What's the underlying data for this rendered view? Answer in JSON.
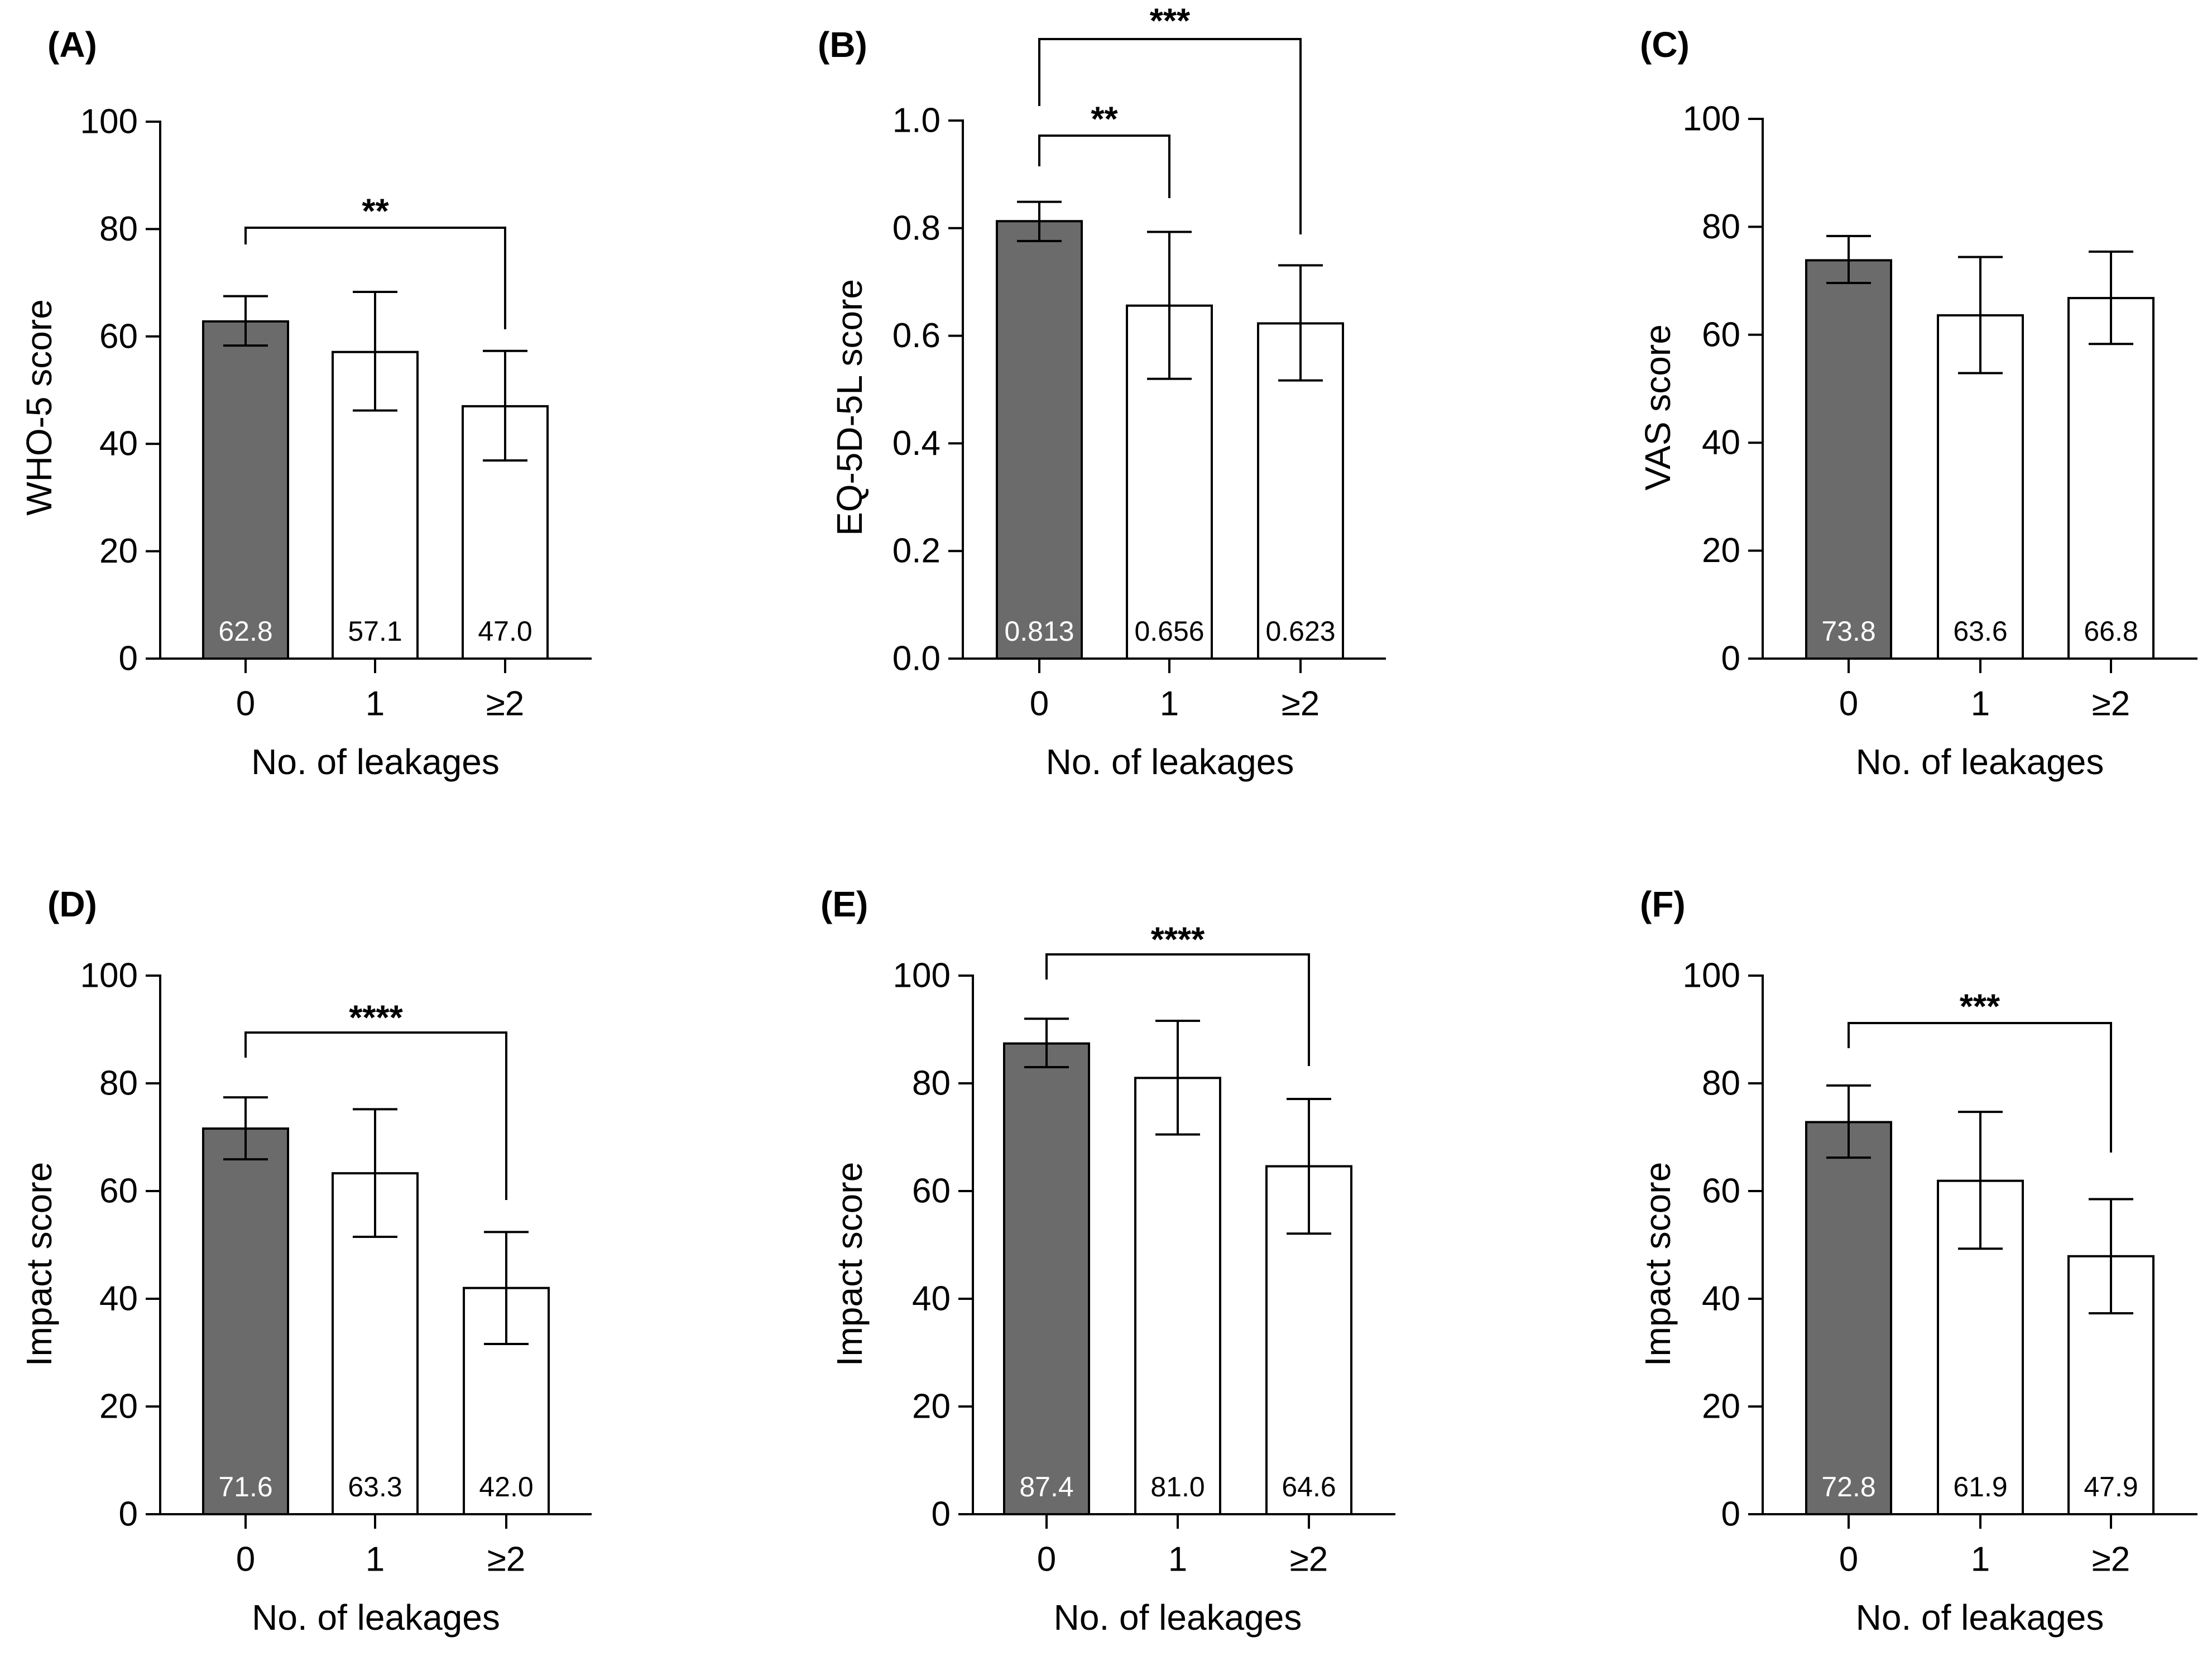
{
  "figure": {
    "x_axis_title": "No. of leakages"
  },
  "colors": {
    "dark_bar": "#6b6b6b",
    "light_bar": "#ffffff",
    "stroke": "#000000",
    "dark_label": "#ffffff",
    "light_label": "#000000"
  },
  "chart_data": [
    {
      "panel": "(A)",
      "type": "bar",
      "categories": [
        "0",
        "1",
        "≥2"
      ],
      "values": [
        62.8,
        57.1,
        47.0
      ],
      "value_labels": [
        "62.8",
        "57.1",
        "47.0"
      ],
      "error_bars": [
        [
          58.3,
          67.5
        ],
        [
          46.2,
          68.3
        ],
        [
          36.9,
          57.3
        ]
      ],
      "ylabel": "WHO-5 score",
      "xlabel": "No. of leakages",
      "ylim": [
        0,
        100
      ],
      "yticks": [
        "0",
        "20",
        "40",
        "60",
        "80",
        "100"
      ],
      "significance": [
        {
          "from": 0,
          "to": 2,
          "label": "**"
        }
      ]
    },
    {
      "panel": "(B)",
      "type": "bar",
      "categories": [
        "0",
        "1",
        "≥2"
      ],
      "values": [
        0.813,
        0.656,
        0.623
      ],
      "value_labels": [
        "0.813",
        "0.656",
        "0.623"
      ],
      "error_bars": [
        [
          0.776,
          0.849
        ],
        [
          0.52,
          0.793
        ],
        [
          0.517,
          0.731
        ]
      ],
      "ylabel": "EQ-5D-5L score",
      "xlabel": "No. of leakages",
      "ylim": [
        0,
        1.0
      ],
      "yticks": [
        "0.0",
        "0.2",
        "0.4",
        "0.6",
        "0.8",
        "1.0"
      ],
      "significance": [
        {
          "from": 0,
          "to": 1,
          "label": "**"
        },
        {
          "from": 0,
          "to": 2,
          "label": "***"
        }
      ]
    },
    {
      "panel": "(C)",
      "type": "bar",
      "categories": [
        "0",
        "1",
        "≥2"
      ],
      "values": [
        73.8,
        63.6,
        66.8
      ],
      "value_labels": [
        "73.8",
        "63.6",
        "66.8"
      ],
      "error_bars": [
        [
          69.6,
          78.3
        ],
        [
          52.9,
          74.4
        ],
        [
          58.3,
          75.4
        ]
      ],
      "ylabel": "VAS score",
      "xlabel": "No. of leakages",
      "ylim": [
        0,
        100
      ],
      "yticks": [
        "0",
        "20",
        "40",
        "60",
        "80",
        "100"
      ],
      "significance": []
    },
    {
      "panel": "(D)",
      "type": "bar",
      "categories": [
        "0",
        "1",
        "≥2"
      ],
      "values": [
        71.6,
        63.3,
        42.0
      ],
      "value_labels": [
        "71.6",
        "63.3",
        "42.0"
      ],
      "error_bars": [
        [
          65.9,
          77.4
        ],
        [
          51.5,
          75.2
        ],
        [
          31.6,
          52.4
        ]
      ],
      "ylabel": "Impact score",
      "xlabel": "No. of leakages",
      "ylim": [
        0,
        100
      ],
      "yticks": [
        "0",
        "20",
        "40",
        "60",
        "80",
        "100"
      ],
      "significance": [
        {
          "from": 0,
          "to": 2,
          "label": "****"
        }
      ]
    },
    {
      "panel": "(E)",
      "type": "bar",
      "categories": [
        "0",
        "1",
        "≥2"
      ],
      "values": [
        87.4,
        81.0,
        64.6
      ],
      "value_labels": [
        "87.4",
        "81.0",
        "64.6"
      ],
      "error_bars": [
        [
          83.0,
          92.0
        ],
        [
          70.5,
          91.6
        ],
        [
          52.1,
          77.1
        ]
      ],
      "ylabel": "Impact score",
      "xlabel": "No. of leakages",
      "ylim": [
        0,
        100
      ],
      "yticks": [
        "0",
        "20",
        "40",
        "60",
        "80",
        "100"
      ],
      "significance": [
        {
          "from": 0,
          "to": 2,
          "label": "****"
        }
      ]
    },
    {
      "panel": "(F)",
      "type": "bar",
      "categories": [
        "0",
        "1",
        "≥2"
      ],
      "values": [
        72.8,
        61.9,
        47.9
      ],
      "value_labels": [
        "72.8",
        "61.9",
        "47.9"
      ],
      "error_bars": [
        [
          66.2,
          79.6
        ],
        [
          49.3,
          74.7
        ],
        [
          37.3,
          58.5
        ]
      ],
      "ylabel": "Impact score",
      "xlabel": "No. of leakages",
      "ylim": [
        0,
        100
      ],
      "yticks": [
        "0",
        "20",
        "40",
        "60",
        "80",
        "100"
      ],
      "significance": [
        {
          "from": 0,
          "to": 2,
          "label": "***"
        }
      ]
    }
  ]
}
